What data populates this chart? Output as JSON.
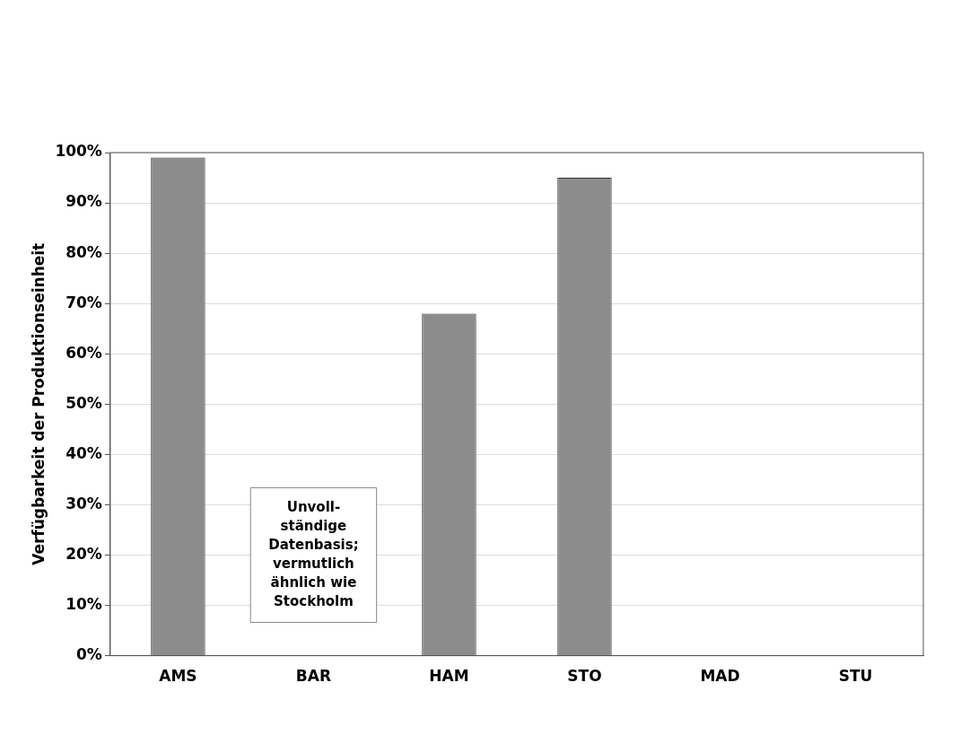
{
  "chart_data": {
    "type": "bar",
    "ylabel": "Verfügbarkeit der Produktionseinheit",
    "categories": [
      "AMS",
      "BAR",
      "HAM",
      "STO",
      "MAD",
      "STU"
    ],
    "values": [
      99,
      null,
      68,
      95,
      null,
      null
    ],
    "color": "#8c8c8c",
    "ylim": [
      0,
      100
    ],
    "yticks": [
      {
        "value": 0,
        "label": "0%"
      },
      {
        "value": 10,
        "label": "10%"
      },
      {
        "value": 20,
        "label": "20%"
      },
      {
        "value": 30,
        "label": "30%"
      },
      {
        "value": 40,
        "label": "40%"
      },
      {
        "value": 50,
        "label": "50%"
      },
      {
        "value": 60,
        "label": "60%"
      },
      {
        "value": 70,
        "label": "70%"
      },
      {
        "value": 80,
        "label": "80%"
      },
      {
        "value": 90,
        "label": "90%"
      },
      {
        "value": 100,
        "label": "100%"
      }
    ],
    "grid": "y",
    "annotations": [
      "Unvoll-\nständige\nDatenbasis;\nvermutlich\nähnlich wie\nStockholm"
    ]
  }
}
